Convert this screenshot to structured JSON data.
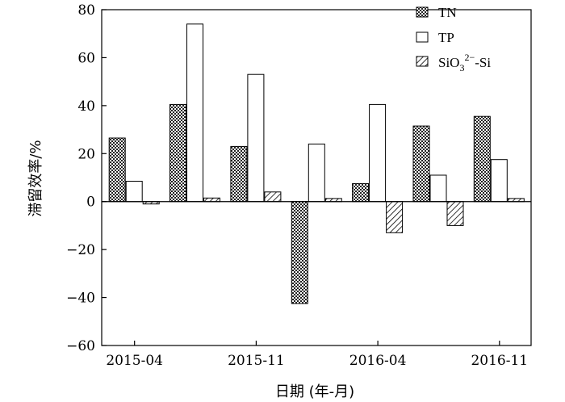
{
  "chart_data": {
    "type": "bar",
    "categories": [
      "2015-04",
      "",
      "2015-11",
      "",
      "2016-04",
      "",
      "2016-11"
    ],
    "x_tick_labels": [
      "2015-04",
      "2015-11",
      "2016-04",
      "2016-11"
    ],
    "series": [
      {
        "name": "TN",
        "values": [
          26.5,
          40.5,
          23,
          -42.5,
          7.5,
          31.5,
          35.5
        ],
        "fill": "crosshatch",
        "color": "#000000"
      },
      {
        "name": "TP",
        "values": [
          8.5,
          74,
          53,
          24,
          40.5,
          11,
          17.5
        ],
        "fill": "none",
        "color": "#000000"
      },
      {
        "name_parts": [
          "SiO",
          "3",
          "2−",
          "-Si"
        ],
        "values": [
          -1,
          1.5,
          4,
          1.3,
          -13,
          -10,
          1.3
        ],
        "fill": "diagonal-hatch",
        "color": "#000000"
      }
    ],
    "ylim": [
      -60,
      80
    ],
    "yticks": [
      -60,
      -40,
      -20,
      0,
      20,
      40,
      60,
      80
    ],
    "xlabel": "日期 (年-月)",
    "ylabel": "滞留效率/%",
    "legend_position": "top-right",
    "grid": false
  }
}
